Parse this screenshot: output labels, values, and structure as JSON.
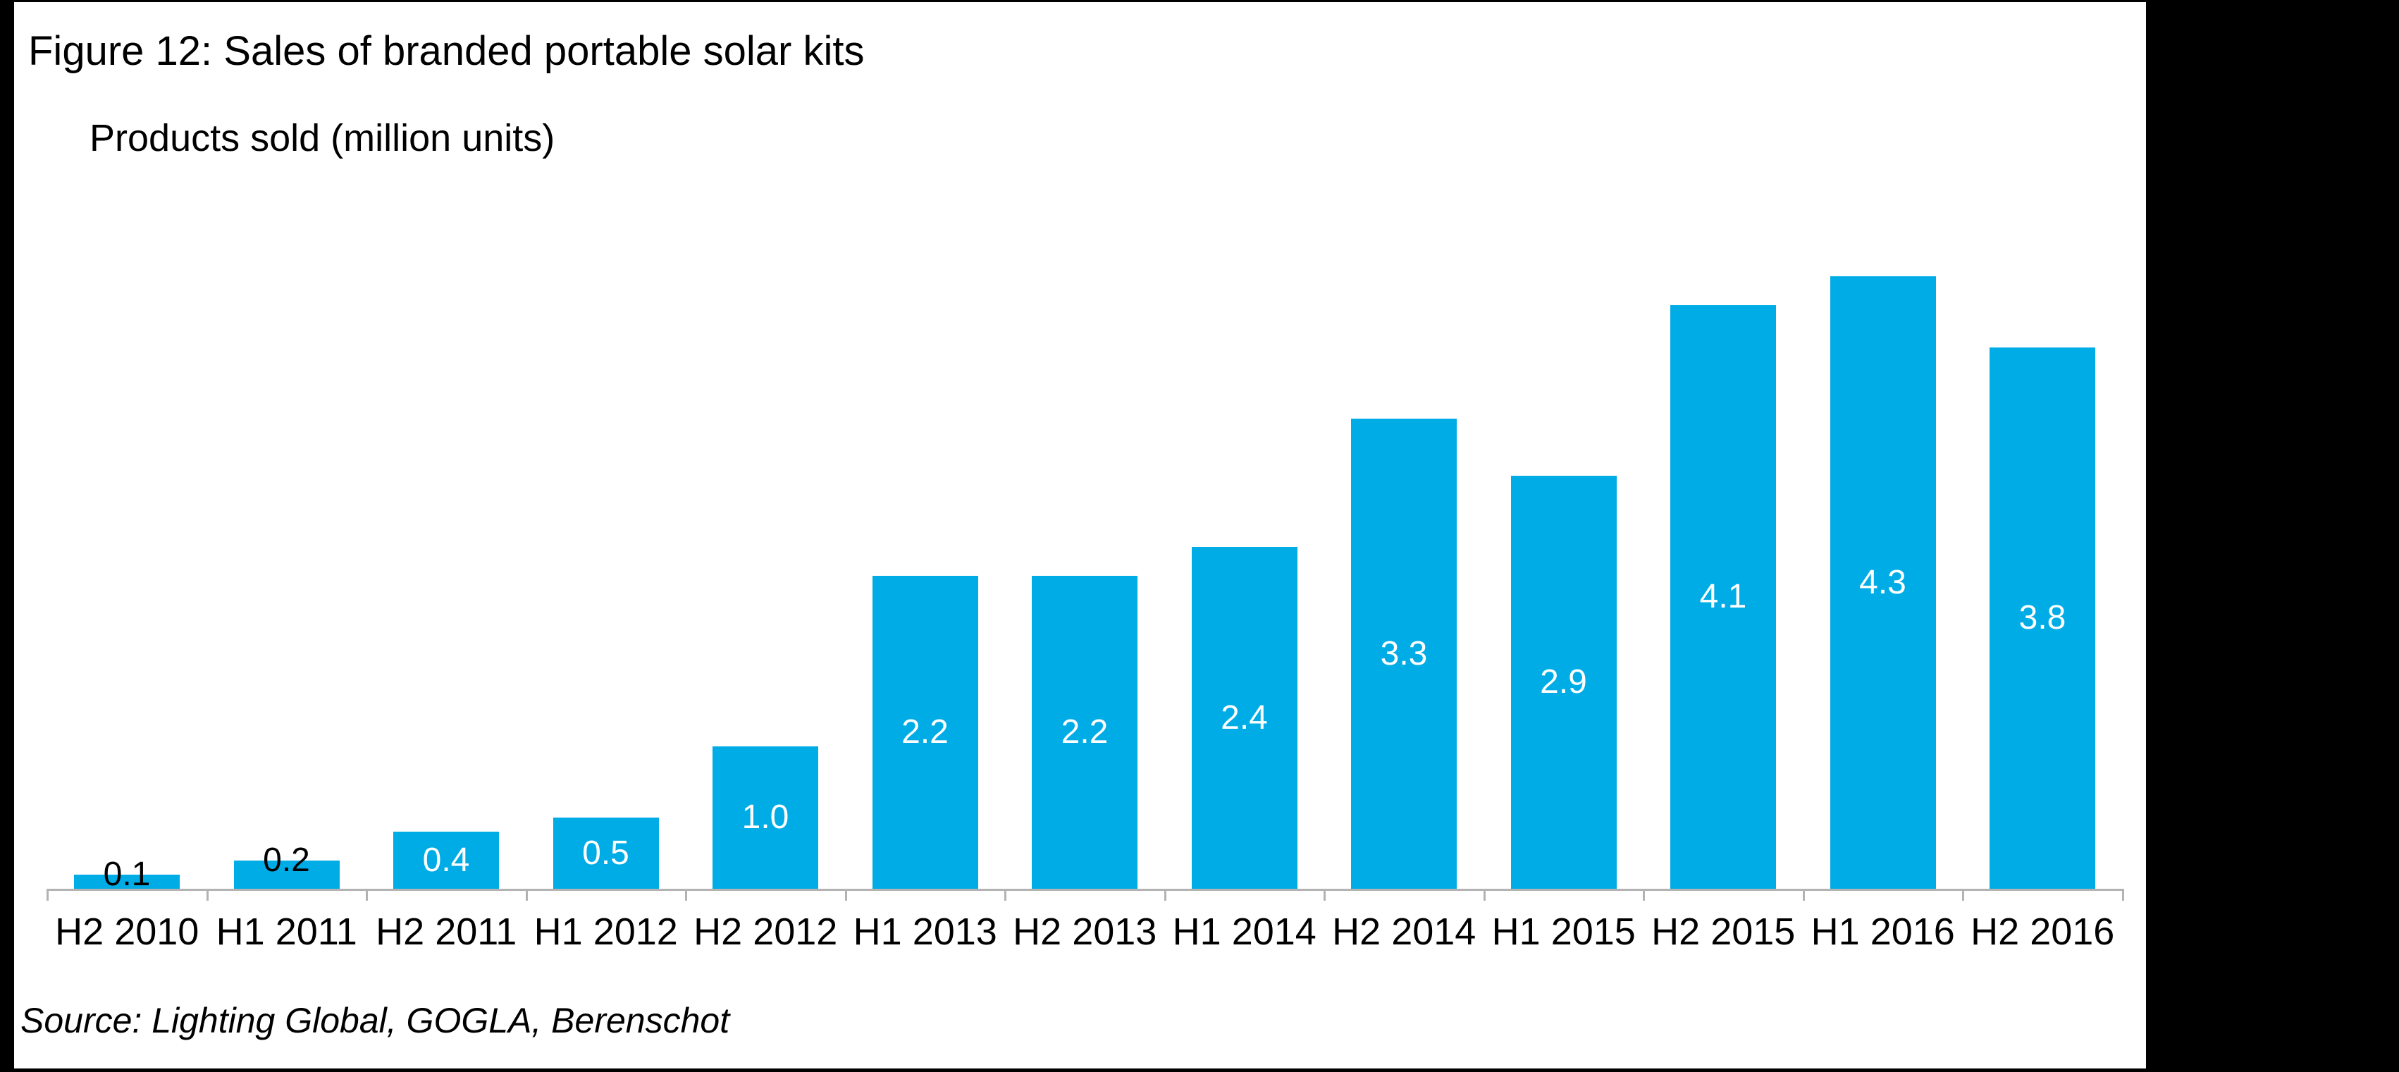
{
  "figure": {
    "title": "Figure 12: Sales of branded portable solar kits",
    "axis_title": "Products sold (million units)",
    "source": "Source: Lighting Global, GOGLA, Berenschot"
  },
  "chart_data": {
    "type": "bar",
    "title": "Figure 12: Sales of branded portable solar kits",
    "ylabel": "Products sold (million units)",
    "xlabel": "",
    "categories": [
      "H2 2010",
      "H1 2011",
      "H2 2011",
      "H1 2012",
      "H2 2012",
      "H1 2013",
      "H2 2013",
      "H1 2014",
      "H2 2014",
      "H1 2015",
      "H2 2015",
      "H1 2016",
      "H2 2016"
    ],
    "values": [
      0.1,
      0.2,
      0.4,
      0.5,
      1.0,
      2.2,
      2.2,
      2.4,
      3.3,
      2.9,
      4.1,
      4.3,
      3.8
    ],
    "value_labels": [
      "0.1",
      "0.2",
      "0.4",
      "0.5",
      "1.0",
      "2.2",
      "2.2",
      "2.4",
      "3.3",
      "2.9",
      "4.1",
      "4.3",
      "3.8"
    ],
    "ylim": [
      0,
      4.5
    ],
    "grid": false,
    "legend_position": "none",
    "bar_color": "#00ACE6",
    "inside_label_color": "#FFFFFF",
    "outside_label_color": "#000000",
    "axis_color": "#B3B3B3",
    "source": "Source: Lighting Global, GOGLA, Berenschot"
  }
}
